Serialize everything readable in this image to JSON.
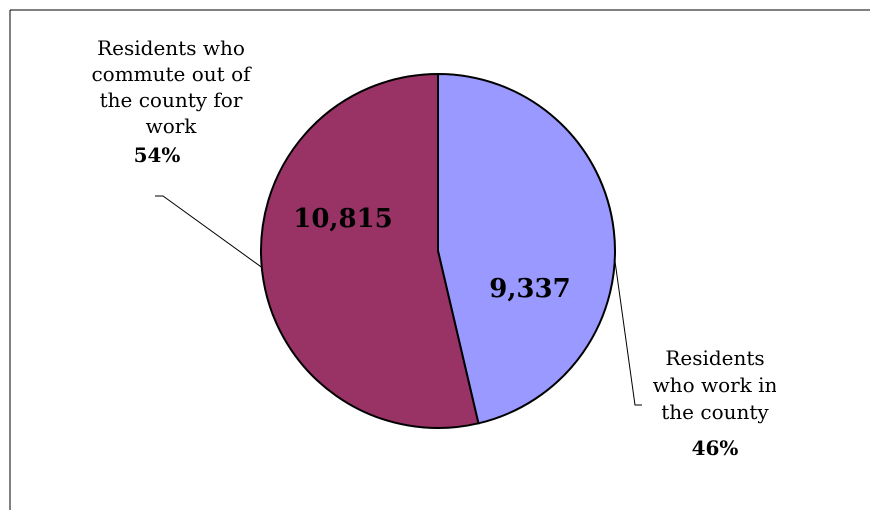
{
  "chart_data": {
    "type": "pie",
    "title": "",
    "slices": [
      {
        "label_lines": [
          "Residents",
          "who work in",
          "the county"
        ],
        "value": 9337,
        "value_label": "9,337",
        "percent_label": "46%",
        "color": "#9999ff"
      },
      {
        "label_lines": [
          "Residents who",
          "commute out of",
          "the county for",
          "work"
        ],
        "value": 10815,
        "value_label": "10,815",
        "percent_label": "54%",
        "color": "#993366"
      }
    ],
    "start_angle_deg": 0,
    "direction": "clockwise",
    "outline_color": "#000000"
  }
}
